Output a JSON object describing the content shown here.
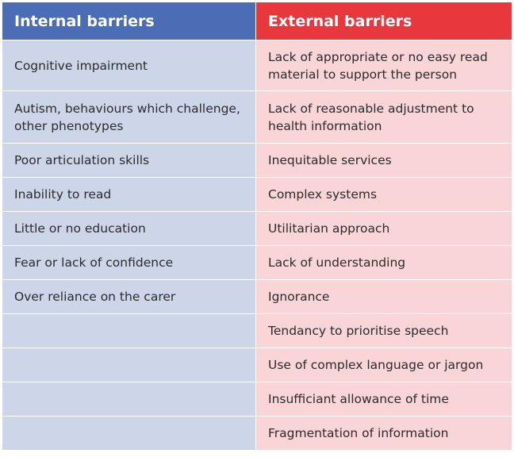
{
  "table": {
    "headers": {
      "internal": "Internal barriers",
      "external": "External barriers"
    },
    "rows": [
      {
        "internal": "Cognitive impairment",
        "external": "Lack of appropriate or no easy read material to support the person"
      },
      {
        "internal": "Autism, behaviours which challenge, other phenotypes",
        "external": "Lack of reasonable adjustment to health information"
      },
      {
        "internal": "Poor articulation skills",
        "external": "Inequitable services"
      },
      {
        "internal": "Inability to read",
        "external": "Complex systems"
      },
      {
        "internal": "Little or no education",
        "external": "Utilitarian approach"
      },
      {
        "internal": "Fear or lack of confidence",
        "external": "Lack of understanding"
      },
      {
        "internal": "Over reliance on the carer",
        "external": "Ignorance"
      },
      {
        "internal": "",
        "external": "Tendancy to prioritise speech"
      },
      {
        "internal": "",
        "external": "Use of complex language or jargon"
      },
      {
        "internal": "",
        "external": "Insufficiant allowance of time"
      },
      {
        "internal": "",
        "external": "Fragmentation of information"
      }
    ]
  },
  "colors": {
    "internal_header": "#4a6db6",
    "external_header": "#e8383e",
    "internal_cell": "#cdd6e9",
    "external_cell": "#f9d5d7"
  }
}
